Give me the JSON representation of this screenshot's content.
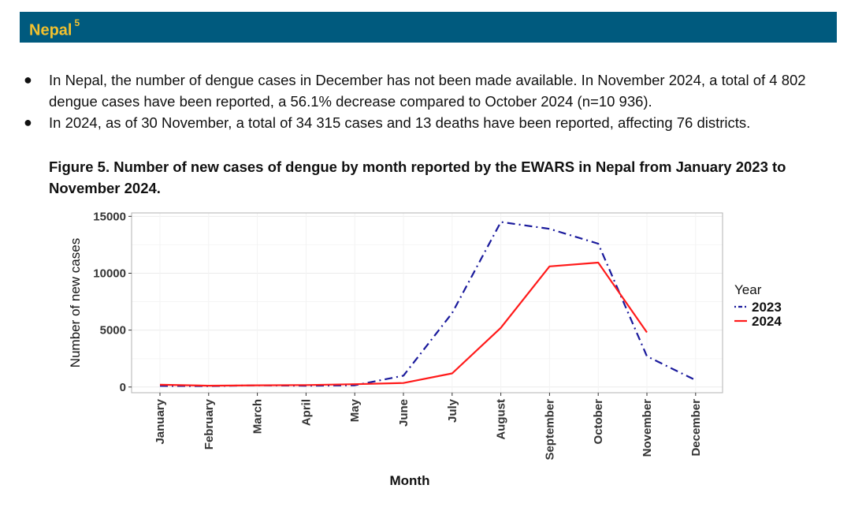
{
  "header": {
    "title": "Nepal",
    "superscript": "5"
  },
  "bullets": [
    "In Nepal, the number of dengue cases in December has not been made available. In November 2024, a total of 4 802 dengue cases have been reported, a 56.1% decrease compared to October 2024 (n=10 936).",
    "In 2024, as of 30 November, a total of 34 315 cases and 13 deaths have been reported, affecting 76 districts."
  ],
  "bullet_symbol": "●",
  "figure": {
    "caption": "Figure 5. Number of new cases of dengue by month reported by the EWARS in Nepal from January 2023 to November 2024."
  },
  "chart_data": {
    "type": "line",
    "title": "",
    "xlabel": "Month",
    "ylabel": "Number of new cases",
    "categories": [
      "January",
      "February",
      "March",
      "April",
      "May",
      "June",
      "July",
      "August",
      "September",
      "October",
      "November",
      "December"
    ],
    "yticks": [
      "0",
      "5000",
      "10000",
      "15000"
    ],
    "ylim": [
      -500,
      15300
    ],
    "legend_title": "Year",
    "legend_position": "right",
    "grid": true,
    "series": [
      {
        "name": "2023",
        "color": "#1a1a9c",
        "style": "dashdot",
        "values": [
          100,
          80,
          150,
          120,
          150,
          1000,
          6500,
          14500,
          13900,
          12600,
          2700,
          600
        ]
      },
      {
        "name": "2024",
        "color": "#ff1a1a",
        "style": "solid",
        "values": [
          200,
          120,
          150,
          170,
          250,
          350,
          1200,
          5200,
          10600,
          10936,
          4802,
          null
        ]
      }
    ]
  }
}
